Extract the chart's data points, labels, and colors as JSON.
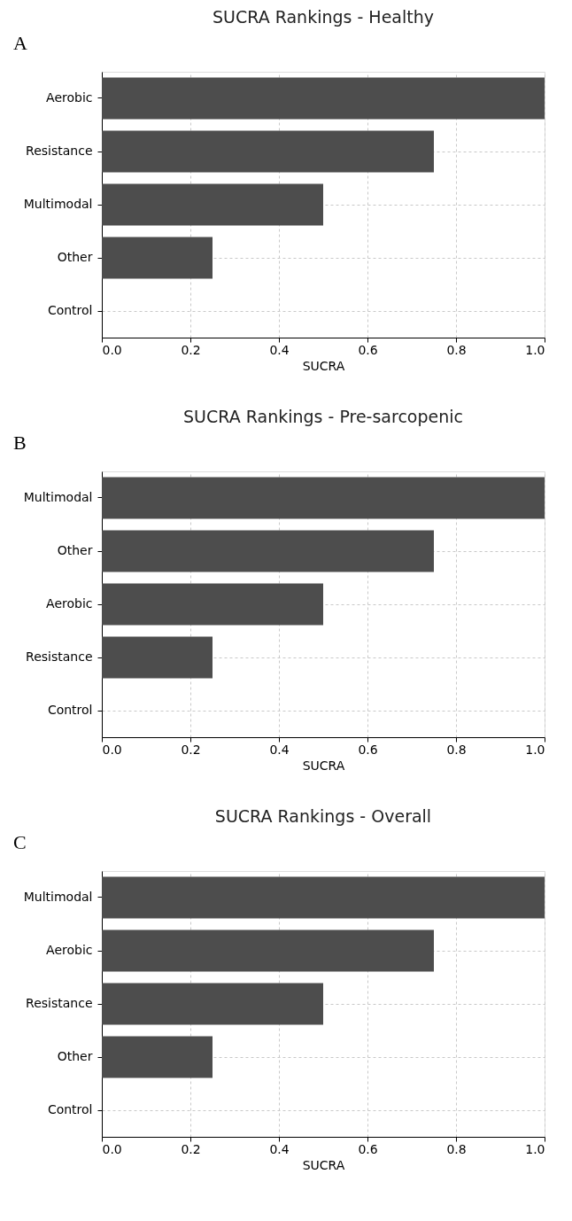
{
  "chart_data": [
    {
      "type": "bar",
      "orientation": "horizontal",
      "title": "SUCRA Rankings - Healthy",
      "xlabel": "SUCRA",
      "annotations": [
        "A"
      ],
      "categories": [
        "Aerobic",
        "Resistance",
        "Multimodal",
        "Other",
        "Control"
      ],
      "values": [
        1.0,
        0.75,
        0.5,
        0.25,
        0.0
      ],
      "color": "#4d4d4d",
      "xlim": [
        0,
        1
      ],
      "xticks": [
        {
          "value": 0,
          "label": "0.0"
        },
        {
          "value": 0.2,
          "label": "0.2"
        },
        {
          "value": 0.4,
          "label": "0.4"
        },
        {
          "value": 0.6,
          "label": "0.6"
        },
        {
          "value": 0.8,
          "label": "0.8"
        },
        {
          "value": 1,
          "label": "1.0"
        }
      ],
      "grid": true
    },
    {
      "type": "bar",
      "orientation": "horizontal",
      "title": "SUCRA Rankings - Pre-sarcopenic",
      "xlabel": "SUCRA",
      "annotations": [
        "B"
      ],
      "categories": [
        "Multimodal",
        "Other",
        "Aerobic",
        "Resistance",
        "Control"
      ],
      "values": [
        1.0,
        0.75,
        0.5,
        0.25,
        0.0
      ],
      "color": "#4d4d4d",
      "xlim": [
        0,
        1
      ],
      "xticks": [
        {
          "value": 0,
          "label": "0.0"
        },
        {
          "value": 0.2,
          "label": "0.2"
        },
        {
          "value": 0.4,
          "label": "0.4"
        },
        {
          "value": 0.6,
          "label": "0.6"
        },
        {
          "value": 0.8,
          "label": "0.8"
        },
        {
          "value": 1,
          "label": "1.0"
        }
      ],
      "grid": true
    },
    {
      "type": "bar",
      "orientation": "horizontal",
      "title": "SUCRA Rankings - Overall",
      "xlabel": "SUCRA",
      "annotations": [
        "C"
      ],
      "categories": [
        "Multimodal",
        "Aerobic",
        "Resistance",
        "Other",
        "Control"
      ],
      "values": [
        1.0,
        0.75,
        0.5,
        0.25,
        0.0
      ],
      "color": "#4d4d4d",
      "xlim": [
        0,
        1
      ],
      "xticks": [
        {
          "value": 0,
          "label": "0.0"
        },
        {
          "value": 0.2,
          "label": "0.2"
        },
        {
          "value": 0.4,
          "label": "0.4"
        },
        {
          "value": 0.6,
          "label": "0.6"
        },
        {
          "value": 0.8,
          "label": "0.8"
        },
        {
          "value": 1,
          "label": "1.0"
        }
      ],
      "grid": true
    }
  ]
}
